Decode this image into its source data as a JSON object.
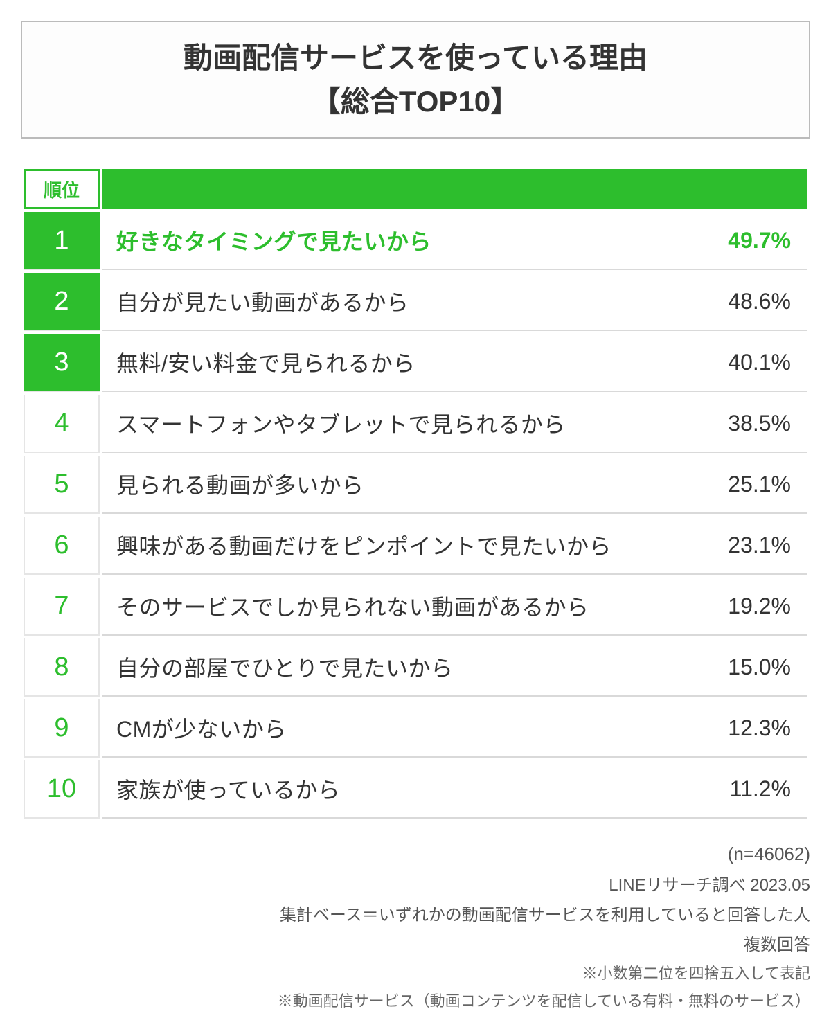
{
  "title": {
    "line1": "動画配信サービスを使っている理由",
    "line2": "【総合TOP10】",
    "border_color": "#bbbbbb",
    "text_color": "#333333",
    "font_size": 42
  },
  "table": {
    "type": "table",
    "rank_header": "順位",
    "accent_color": "#2dbe2d",
    "text_color": "#333333",
    "divider_color": "#d9d9d9",
    "top3_rank_bg": "#2dbe2d",
    "top3_rank_text": "#ffffff",
    "other_rank_text": "#2dbe2d",
    "font_size_rank": 38,
    "font_size_content": 32,
    "rows": [
      {
        "rank": "1",
        "reason": "好きなタイミングで見たいから",
        "percent": "49.7%",
        "top3": true,
        "highlight": true
      },
      {
        "rank": "2",
        "reason": "自分が見たい動画があるから",
        "percent": "48.6%",
        "top3": true,
        "highlight": false
      },
      {
        "rank": "3",
        "reason": "無料/安い料金で見られるから",
        "percent": "40.1%",
        "top3": true,
        "highlight": false
      },
      {
        "rank": "4",
        "reason": "スマートフォンやタブレットで見られるから",
        "percent": "38.5%",
        "top3": false,
        "highlight": false
      },
      {
        "rank": "5",
        "reason": "見られる動画が多いから",
        "percent": "25.1%",
        "top3": false,
        "highlight": false
      },
      {
        "rank": "6",
        "reason": "興味がある動画だけをピンポイントで見たいから",
        "percent": "23.1%",
        "top3": false,
        "highlight": false
      },
      {
        "rank": "7",
        "reason": "そのサービスでしか見られない動画があるから",
        "percent": "19.2%",
        "top3": false,
        "highlight": false
      },
      {
        "rank": "8",
        "reason": "自分の部屋でひとりで見たいから",
        "percent": "15.0%",
        "top3": false,
        "highlight": false
      },
      {
        "rank": "9",
        "reason": "CMが少ないから",
        "percent": "12.3%",
        "top3": false,
        "highlight": false
      },
      {
        "rank": "10",
        "reason": "家族が使っているから",
        "percent": "11.2%",
        "top3": false,
        "highlight": false
      }
    ]
  },
  "footer": {
    "n": "(n=46062)",
    "source": "LINEリサーチ調べ 2023.05",
    "base": "集計ベース＝いずれかの動画配信サービスを利用していると回答した人",
    "multi": "複数回答",
    "note1": "※小数第二位を四捨五入して表記",
    "note2": "※動画配信サービス（動画コンテンツを配信している有料・無料のサービス）",
    "text_color": "#555555",
    "font_size": 24
  },
  "background_color": "#ffffff"
}
